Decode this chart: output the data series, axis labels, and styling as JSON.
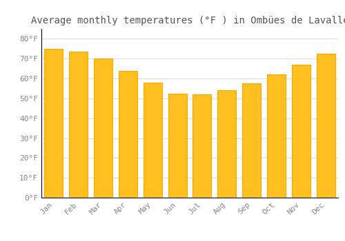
{
  "title": "Average monthly temperatures (°F ) in Ombües de Lavalle",
  "months": [
    "Jan",
    "Feb",
    "Mar",
    "Apr",
    "May",
    "Jun",
    "Jul",
    "Aug",
    "Sep",
    "Oct",
    "Nov",
    "Dec"
  ],
  "values": [
    75,
    73.5,
    70,
    64,
    58,
    52.5,
    52,
    54,
    57.5,
    62,
    67,
    72.5
  ],
  "bar_color_face": "#FFC020",
  "bar_color_edge": "#FFA500",
  "background_color": "#FFFFFF",
  "grid_color": "#DDDDDD",
  "ytick_labels": [
    "0°F",
    "10°F",
    "20°F",
    "30°F",
    "40°F",
    "50°F",
    "60°F",
    "70°F",
    "80°F"
  ],
  "ytick_values": [
    0,
    10,
    20,
    30,
    40,
    50,
    60,
    70,
    80
  ],
  "ylim": [
    0,
    85
  ],
  "title_fontsize": 10,
  "tick_fontsize": 8,
  "font_family": "monospace"
}
